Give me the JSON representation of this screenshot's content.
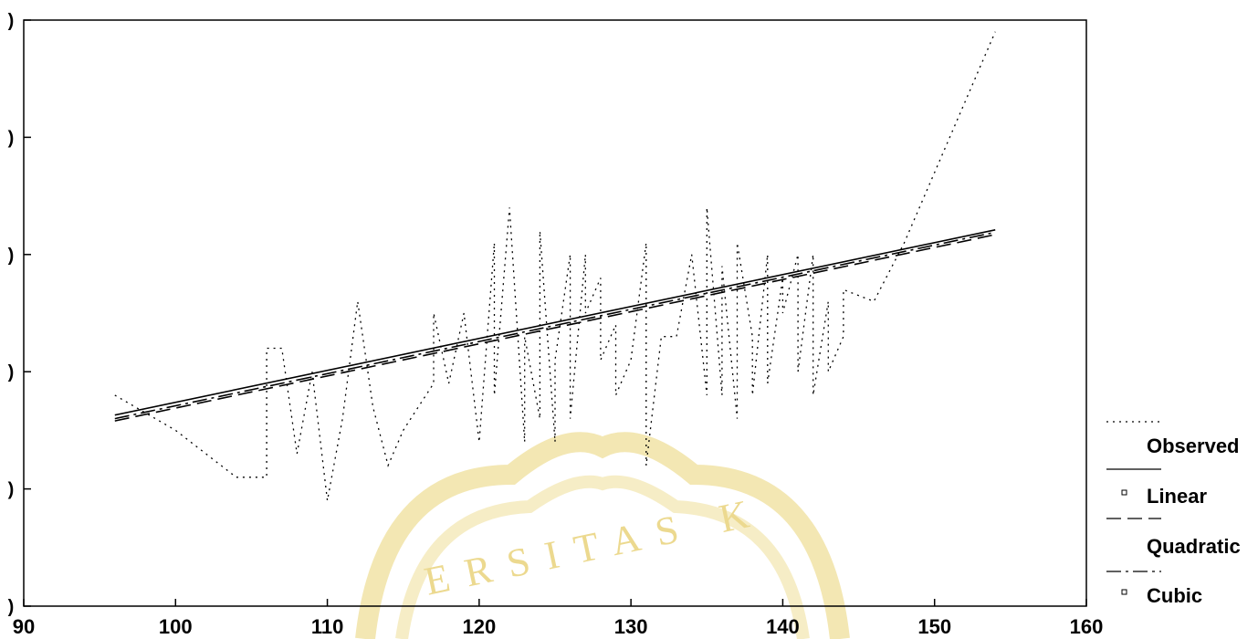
{
  "chart_data": {
    "type": "line",
    "title": "",
    "xlabel": "",
    "ylabel": "",
    "xlim": [
      90,
      160
    ],
    "ylim": [
      0,
      5
    ],
    "x_ticks": [
      90,
      100,
      110,
      120,
      130,
      140,
      150,
      160
    ],
    "y_ticks": [
      0,
      1,
      2,
      3,
      4,
      5
    ],
    "y_tick_labels": [
      ")",
      ")",
      ")",
      ")",
      ")",
      ")"
    ],
    "grid": false,
    "legend_position": "right",
    "watermark_text": "ERSITAS K",
    "legend": [
      {
        "label": "Observed",
        "style": "dotted"
      },
      {
        "label": "Linear",
        "style": "solid"
      },
      {
        "label": "Quadratic",
        "style": "dashed"
      },
      {
        "label": "Cubic",
        "style": "dash-dot"
      }
    ],
    "series": [
      {
        "name": "Observed",
        "style": "dotted",
        "x": [
          96,
          100,
          104,
          106,
          106,
          107,
          108,
          109,
          110,
          111,
          112,
          113,
          114,
          115,
          116,
          117,
          117,
          118,
          119,
          120,
          121,
          121,
          122,
          123,
          123,
          124,
          124,
          125,
          125,
          126,
          126,
          127,
          127,
          128,
          128,
          129,
          129,
          130,
          131,
          131,
          132,
          133,
          134,
          135,
          135,
          136,
          136,
          137,
          137,
          138,
          138,
          139,
          139,
          140,
          140,
          141,
          141,
          142,
          142,
          143,
          143,
          144,
          144,
          146,
          148,
          154
        ],
        "y": [
          1.8,
          1.5,
          1.1,
          1.1,
          2.2,
          2.2,
          1.3,
          2.0,
          0.9,
          1.6,
          2.6,
          1.7,
          1.2,
          1.5,
          1.7,
          1.9,
          2.5,
          1.9,
          2.5,
          1.4,
          3.1,
          1.8,
          3.4,
          1.4,
          2.3,
          1.6,
          3.2,
          1.4,
          2.1,
          3.0,
          1.6,
          3.0,
          2.5,
          2.8,
          2.1,
          2.4,
          1.8,
          2.1,
          3.1,
          1.2,
          2.3,
          2.3,
          3.0,
          1.8,
          3.4,
          1.8,
          2.9,
          1.6,
          3.1,
          2.3,
          1.8,
          3.0,
          1.9,
          2.8,
          2.5,
          3.0,
          2.0,
          3.0,
          1.8,
          2.6,
          2.0,
          2.3,
          2.7,
          2.6,
          3.1,
          4.9
        ]
      },
      {
        "name": "Linear",
        "style": "solid",
        "x": [
          96,
          154
        ],
        "y": [
          1.63,
          3.21
        ]
      },
      {
        "name": "Quadratic",
        "style": "dashed",
        "x": [
          96,
          154
        ],
        "y": [
          1.58,
          3.17
        ]
      },
      {
        "name": "Cubic",
        "style": "dash-dot",
        "x": [
          96,
          154
        ],
        "y": [
          1.6,
          3.19
        ]
      }
    ]
  }
}
